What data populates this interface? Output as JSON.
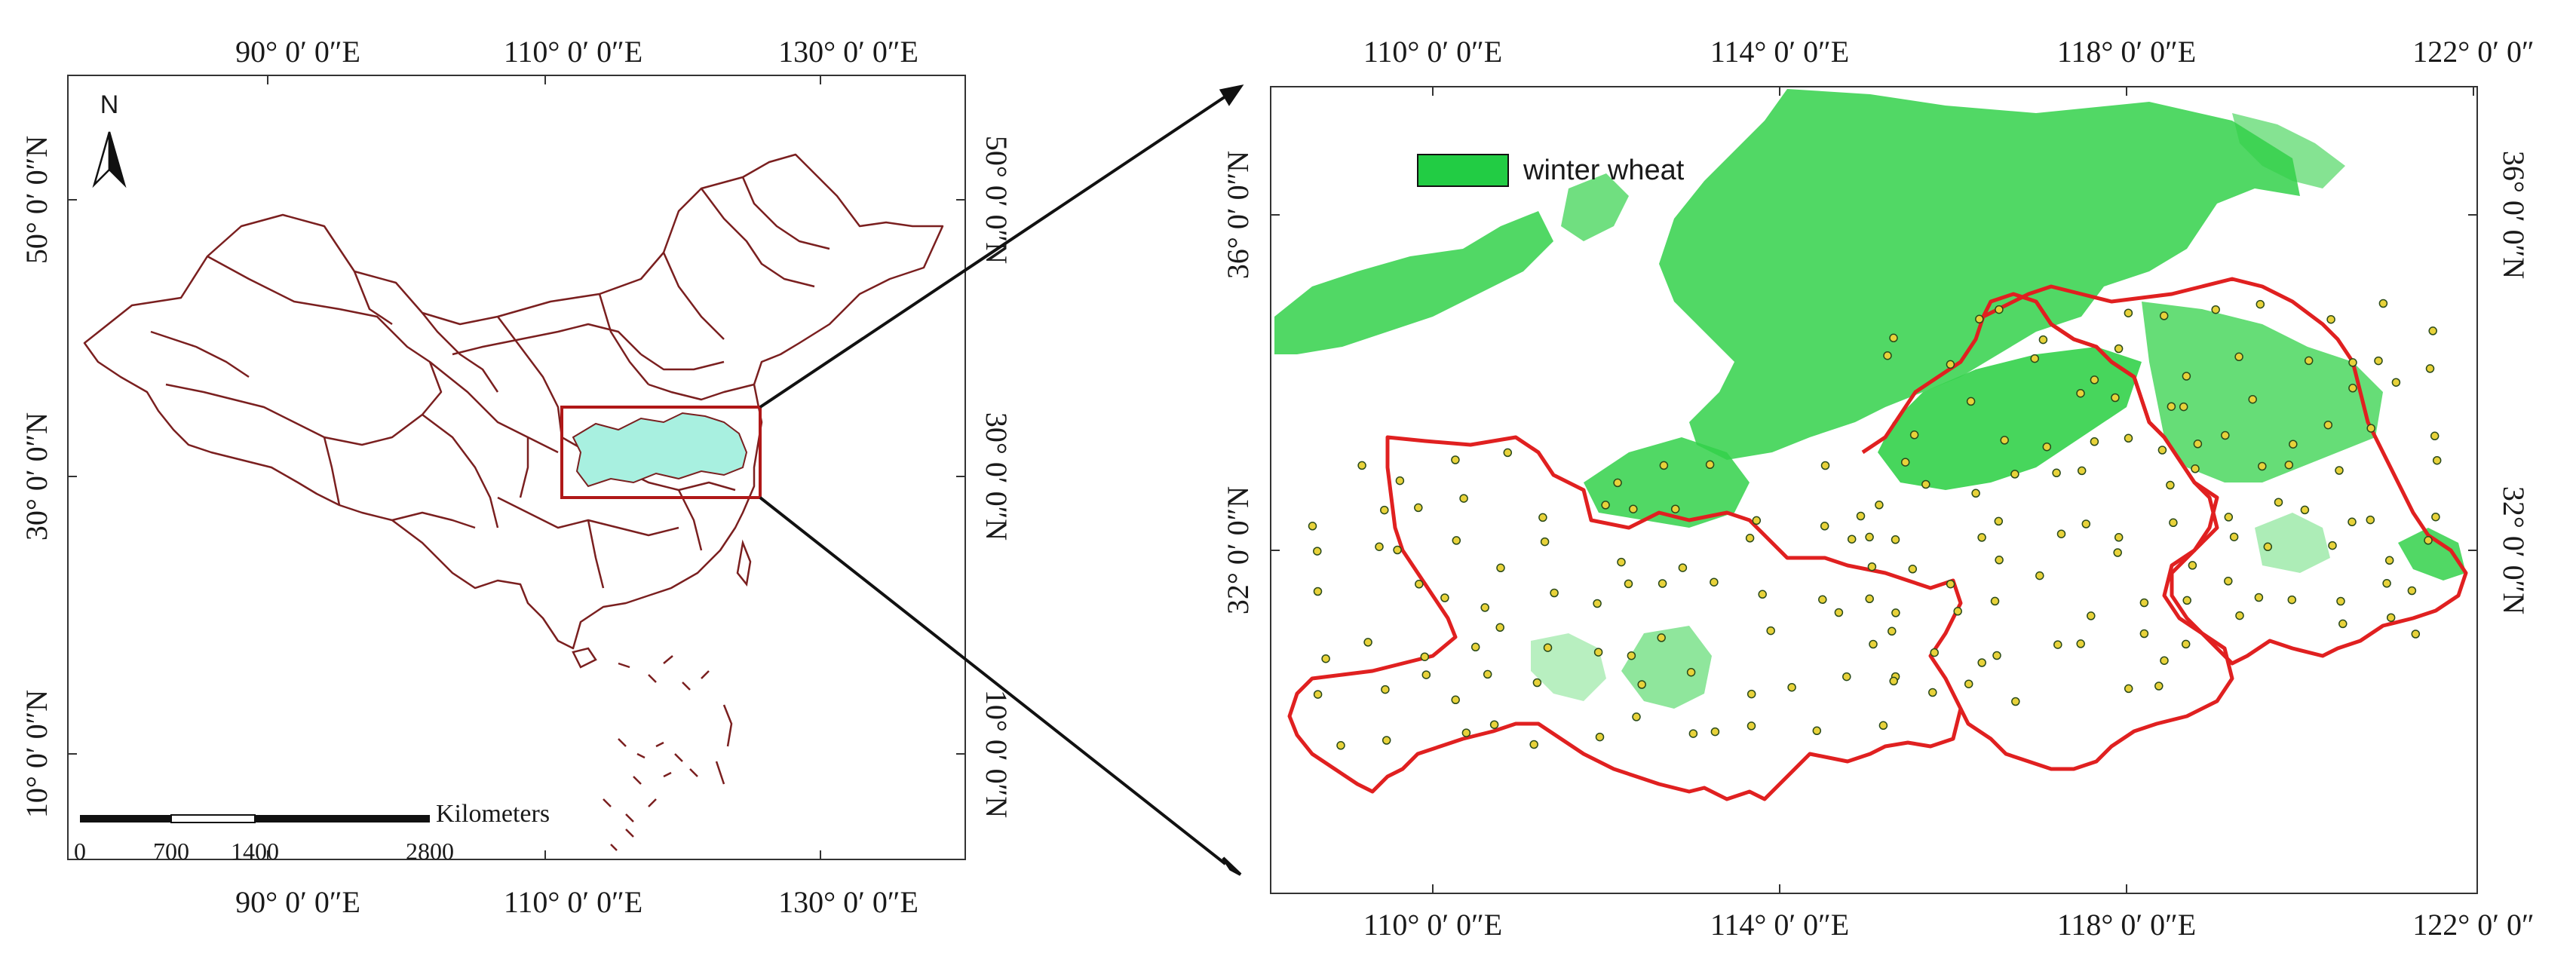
{
  "left_map": {
    "top_labels": [
      "90°  0′ 0″E",
      "110°  0′ 0″E",
      "130°  0′ 0″E"
    ],
    "bottom_labels": [
      "90°  0′ 0″E",
      "110°  0′ 0″E",
      "130°  0′ 0″E"
    ],
    "left_labels": [
      "50°  0′ 0″N",
      "30°  0′ 0″N",
      "10°  0′ 0″N"
    ],
    "right_labels": [
      "50°  0′ 0″N",
      "30°  0′ 0″N",
      "10°  0′ 0″N"
    ],
    "north_label": "N",
    "scale_unit": "Kilometers",
    "scale_ticks": [
      "0",
      "700",
      "1400",
      "2800"
    ],
    "colors": {
      "boundary": "#7a1f1f",
      "study_area_fill": "#a8f0e0",
      "highlight_box": "#b01818"
    }
  },
  "right_map": {
    "top_labels": [
      "110°  0′ 0″E",
      "114°  0′ 0″E",
      "118°  0′ 0″E",
      "122°  0′ 0″"
    ],
    "bottom_labels": [
      "110°  0′ 0″E",
      "114°  0′ 0″E",
      "118°  0′ 0″E",
      "122°  0′ 0″"
    ],
    "left_labels": [
      "36°  0′ 0″N",
      "32°  0′ 0″N"
    ],
    "right_labels": [
      "36°  0′ 0″N",
      "32°  0′ 0″N"
    ],
    "legend": {
      "label": "winter wheat",
      "swatch_color": "#22cc44"
    },
    "colors": {
      "wheat": "#33d14a",
      "province_boundary": "#e02020",
      "site_fill": "#e8d23a",
      "site_stroke": "#2a4a1a"
    }
  }
}
